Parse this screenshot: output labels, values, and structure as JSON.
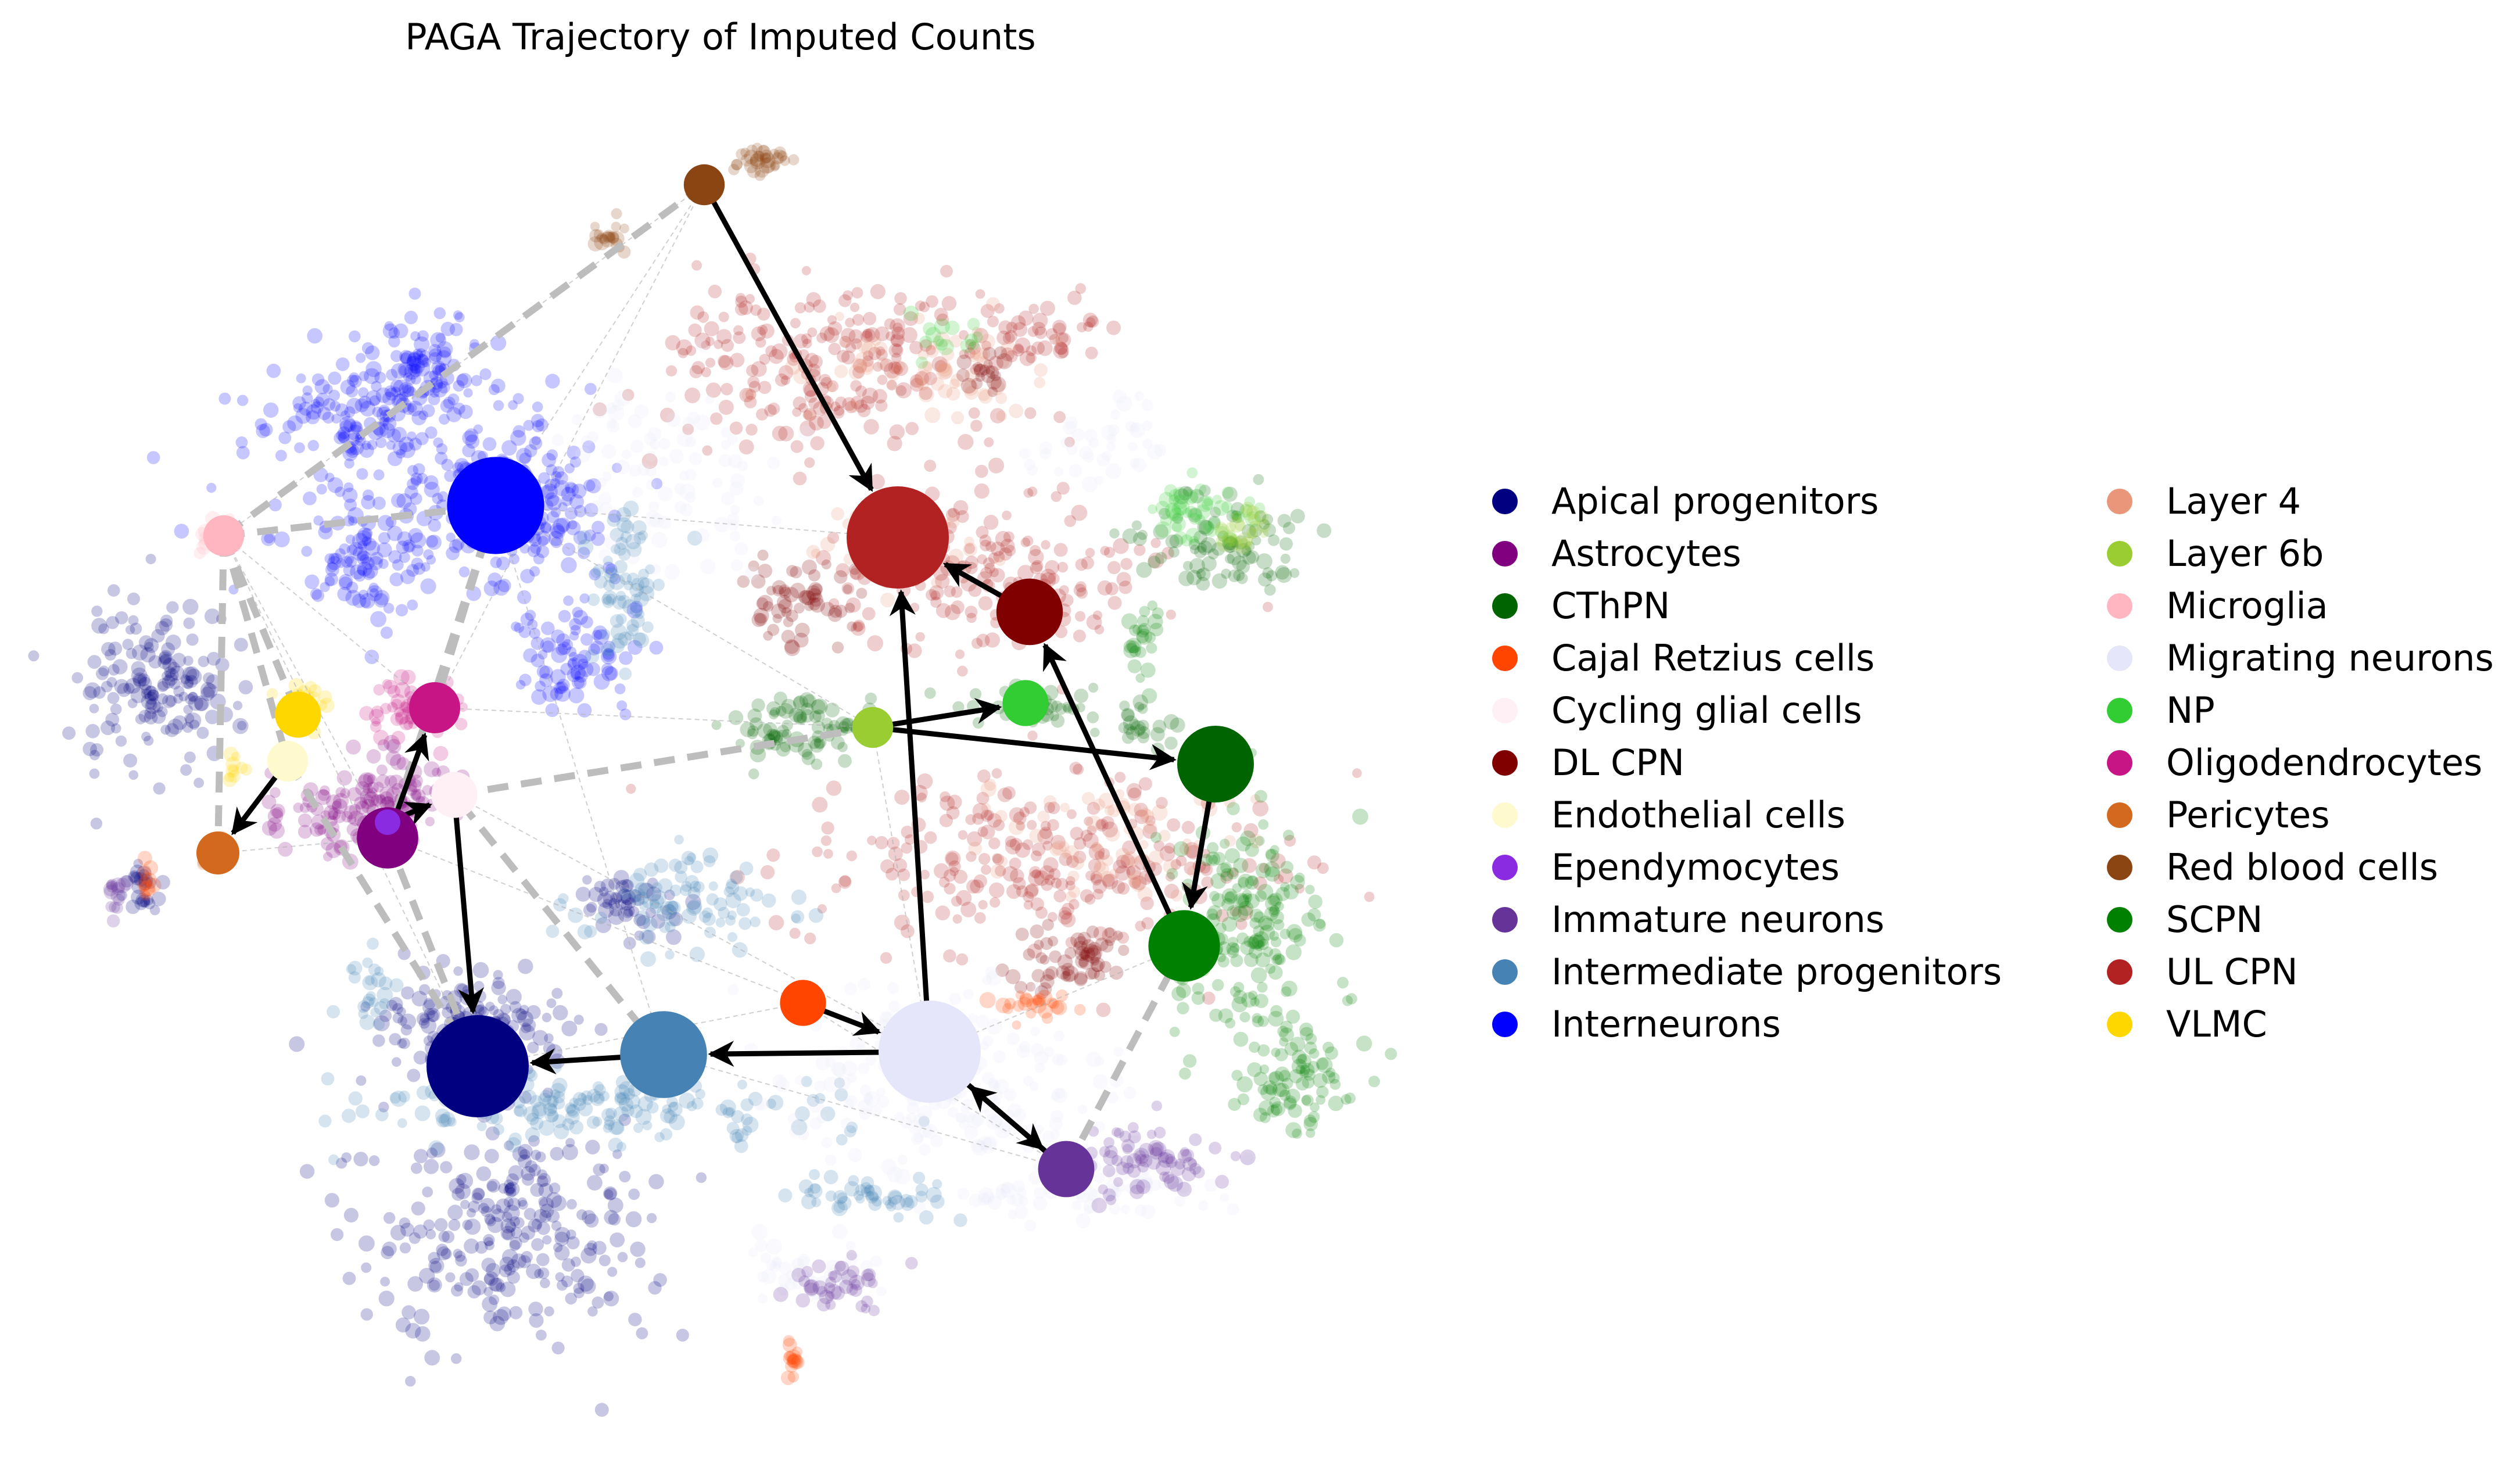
{
  "chart_data": {
    "type": "scatter",
    "title": "PAGA Trajectory of Imputed Counts",
    "xlabel": "",
    "ylabel": "",
    "grid": false,
    "axes_visible": false,
    "legend_placement": "right",
    "legend_columns": 2,
    "categories": [
      {
        "name": "Apical progenitors",
        "color": "#000080"
      },
      {
        "name": "Astrocytes",
        "color": "#800080"
      },
      {
        "name": "CThPN",
        "color": "#006400"
      },
      {
        "name": "Cajal Retzius cells",
        "color": "#FF4500"
      },
      {
        "name": "Cycling glial cells",
        "color": "#FFF0F5"
      },
      {
        "name": "DL CPN",
        "color": "#800000"
      },
      {
        "name": "Endothelial cells",
        "color": "#FFFACD"
      },
      {
        "name": "Ependymocytes",
        "color": "#8A2BE2"
      },
      {
        "name": "Immature neurons",
        "color": "#663399"
      },
      {
        "name": "Intermediate progenitors",
        "color": "#4682B4"
      },
      {
        "name": "Interneurons",
        "color": "#0000FF"
      },
      {
        "name": "Layer 4",
        "color": "#E9967A"
      },
      {
        "name": "Layer 6b",
        "color": "#9ACD32"
      },
      {
        "name": "Microglia",
        "color": "#FFB6C1"
      },
      {
        "name": "Migrating neurons",
        "color": "#E6E6FA"
      },
      {
        "name": "NP",
        "color": "#32CD32"
      },
      {
        "name": "Oligodendrocytes",
        "color": "#C71585"
      },
      {
        "name": "Pericytes",
        "color": "#D2691E"
      },
      {
        "name": "Red blood cells",
        "color": "#8B4513"
      },
      {
        "name": "SCPN",
        "color": "#008000"
      },
      {
        "name": "UL CPN",
        "color": "#B22222"
      },
      {
        "name": "VLMC",
        "color": "#FFD700"
      }
    ],
    "cell_clouds": [
      {
        "type": "Interneurons",
        "color": "#0000FF"
      },
      {
        "type": "Apical progenitors",
        "color": "#000080"
      },
      {
        "type": "UL CPN",
        "color": "#B22222"
      },
      {
        "type": "Layer 4",
        "color": "#E9967A"
      },
      {
        "type": "DL CPN",
        "color": "#800000"
      },
      {
        "type": "Intermediate progenitors",
        "color": "#4682B4"
      },
      {
        "type": "Migrating neurons",
        "color": "#E6E6FA"
      },
      {
        "type": "CThPN",
        "color": "#006400"
      },
      {
        "type": "SCPN",
        "color": "#008000"
      },
      {
        "type": "NP",
        "color": "#32CD32"
      },
      {
        "type": "Layer 6b",
        "color": "#9ACD32"
      },
      {
        "type": "Astrocytes",
        "color": "#800080"
      },
      {
        "type": "Oligodendrocytes",
        "color": "#C71585"
      },
      {
        "type": "Immature neurons",
        "color": "#663399"
      },
      {
        "type": "Cajal Retzius cells",
        "color": "#FF4500"
      },
      {
        "type": "Red blood cells",
        "color": "#8B4513"
      },
      {
        "type": "Microglia",
        "color": "#FFB6C1"
      },
      {
        "type": "VLMC",
        "color": "#FFD700"
      },
      {
        "type": "Pericytes",
        "color": "#D2691E"
      }
    ],
    "paga_nodes": [
      {
        "name": "Interneurons",
        "relative_size": 0.95
      },
      {
        "name": "UL CPN",
        "relative_size": 1.0
      },
      {
        "name": "Apical progenitors",
        "relative_size": 1.0
      },
      {
        "name": "Intermediate progenitors",
        "relative_size": 0.85
      },
      {
        "name": "Migrating neurons",
        "relative_size": 1.0
      },
      {
        "name": "DL CPN",
        "relative_size": 0.65
      },
      {
        "name": "CThPN",
        "relative_size": 0.75
      },
      {
        "name": "SCPN",
        "relative_size": 0.7
      },
      {
        "name": "NP",
        "relative_size": 0.45
      },
      {
        "name": "Layer 6b",
        "relative_size": 0.4
      },
      {
        "name": "Red blood cells",
        "relative_size": 0.4
      },
      {
        "name": "Microglia",
        "relative_size": 0.4
      },
      {
        "name": "VLMC",
        "relative_size": 0.45
      },
      {
        "name": "Endothelial cells",
        "relative_size": 0.4
      },
      {
        "name": "Pericytes",
        "relative_size": 0.42
      },
      {
        "name": "Oligodendrocytes",
        "relative_size": 0.5
      },
      {
        "name": "Cycling glial cells",
        "relative_size": 0.45
      },
      {
        "name": "Astrocytes",
        "relative_size": 0.6
      },
      {
        "name": "Ependymocytes",
        "relative_size": 0.25
      },
      {
        "name": "Cajal Retzius cells",
        "relative_size": 0.45
      },
      {
        "name": "Immature neurons",
        "relative_size": 0.55
      }
    ],
    "directed_transitions": [
      {
        "from": "Red blood cells",
        "to": "UL CPN"
      },
      {
        "from": "DL CPN",
        "to": "UL CPN"
      },
      {
        "from": "Migrating neurons",
        "to": "UL CPN"
      },
      {
        "from": "Layer 6b",
        "to": "NP"
      },
      {
        "from": "Layer 6b",
        "to": "CThPN"
      },
      {
        "from": "CThPN",
        "to": "SCPN"
      },
      {
        "from": "SCPN",
        "to": "DL CPN"
      },
      {
        "from": "Migrating neurons",
        "to": "Intermediate progenitors"
      },
      {
        "from": "Intermediate progenitors",
        "to": "Apical progenitors"
      },
      {
        "from": "Cajal Retzius cells",
        "to": "Migrating neurons"
      },
      {
        "from": "Migrating neurons",
        "to": "Immature neurons"
      },
      {
        "from": "Immature neurons",
        "to": "Migrating neurons"
      },
      {
        "from": "Cycling glial cells",
        "to": "Apical progenitors"
      },
      {
        "from": "Astrocytes",
        "to": "Oligodendrocytes"
      },
      {
        "from": "Ependymocytes",
        "to": "Cycling glial cells"
      },
      {
        "from": "Endothelial cells",
        "to": "Pericytes"
      }
    ],
    "undirected_connections": [
      {
        "from": "Red blood cells",
        "to": "Microglia"
      },
      {
        "from": "Microglia",
        "to": "Interneurons"
      },
      {
        "from": "Microglia",
        "to": "VLMC"
      },
      {
        "from": "Microglia",
        "to": "Endothelial cells"
      },
      {
        "from": "Microglia",
        "to": "Pericytes"
      },
      {
        "from": "Interneurons",
        "to": "Oligodendrocytes"
      },
      {
        "from": "Interneurons",
        "to": "Astrocytes"
      },
      {
        "from": "Cycling glial cells",
        "to": "Layer 6b"
      },
      {
        "from": "Immature neurons",
        "to": "SCPN"
      },
      {
        "from": "VLMC",
        "to": "Endothelial cells"
      },
      {
        "from": "Endothelial cells",
        "to": "Apical progenitors"
      },
      {
        "from": "Astrocytes",
        "to": "Apical progenitors"
      },
      {
        "from": "Intermediate progenitors",
        "to": "Cycling glial cells"
      }
    ]
  }
}
